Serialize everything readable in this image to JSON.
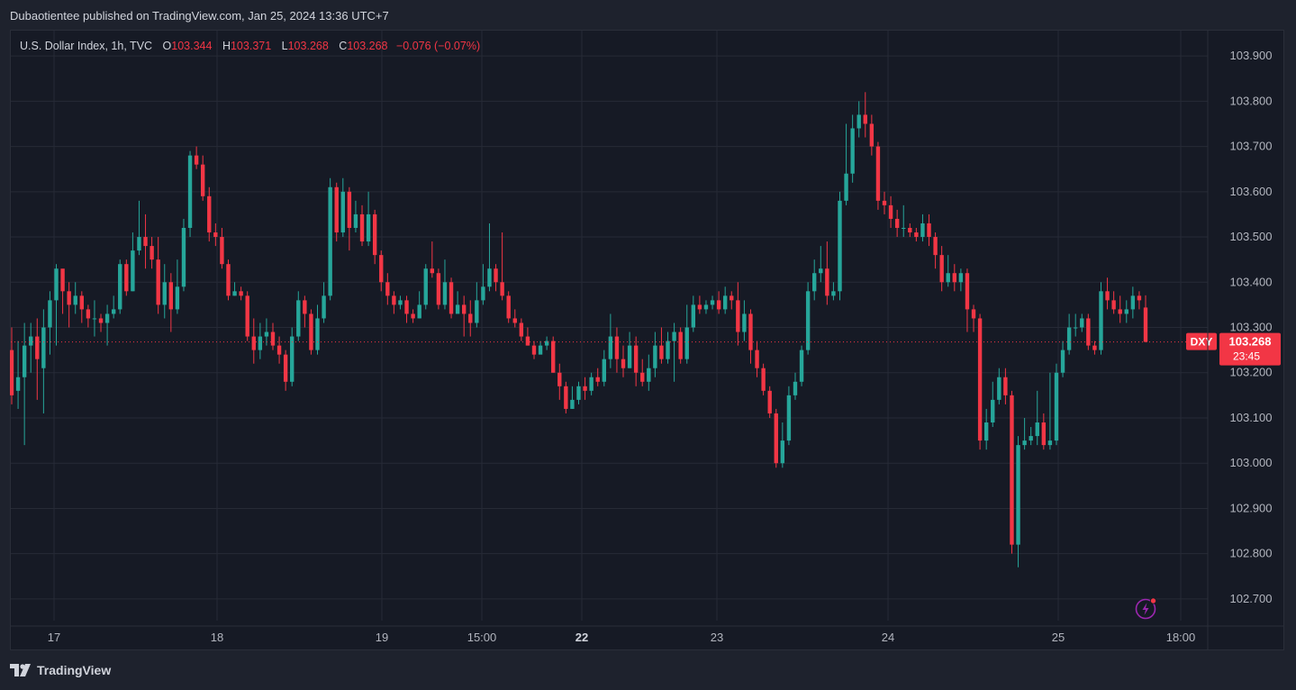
{
  "header": {
    "published": "Dubaotientee published on TradingView.com, Jan 25, 2024 13:36 UTC+7"
  },
  "legend": {
    "symbol": "U.S. Dollar Index, 1h, TVC",
    "o_label": "O",
    "o_value": "103.344",
    "h_label": "H",
    "h_value": "103.371",
    "l_label": "L",
    "l_value": "103.268",
    "c_label": "C",
    "c_value": "103.268",
    "change": "−0.076 (−0.07%)"
  },
  "price_tag": {
    "ticker": "DXY",
    "price": "103.268",
    "countdown": "23:45"
  },
  "branding": {
    "name": "TradingView"
  },
  "colors": {
    "up": "#26a69a",
    "down": "#f23645",
    "background": "#161a25",
    "grid": "#262a36",
    "text": "#b2b5be"
  },
  "chart_data": {
    "type": "candlestick",
    "symbol": "DXY",
    "timeframe": "1h",
    "ylim": [
      102.66,
      103.95
    ],
    "y_ticks": [
      "103.900",
      "103.800",
      "103.700",
      "103.600",
      "103.500",
      "103.400",
      "103.300",
      "103.200",
      "103.100",
      "103.000",
      "102.900",
      "102.800",
      "102.700"
    ],
    "x_ticks": [
      {
        "label": "17",
        "bold": false
      },
      {
        "label": "18",
        "bold": false
      },
      {
        "label": "19",
        "bold": false
      },
      {
        "label": "15:00",
        "bold": false
      },
      {
        "label": "22",
        "bold": true
      },
      {
        "label": "23",
        "bold": false
      },
      {
        "label": "24",
        "bold": false
      },
      {
        "label": "25",
        "bold": false
      },
      {
        "label": "18:00",
        "bold": false
      }
    ],
    "last_price": 103.268,
    "candles": [
      [
        103.25,
        103.15,
        103.3,
        103.13
      ],
      [
        103.16,
        103.19,
        103.27,
        103.12
      ],
      [
        103.19,
        103.26,
        103.31,
        103.04
      ],
      [
        103.26,
        103.28,
        103.31,
        103.2
      ],
      [
        103.28,
        103.23,
        103.32,
        103.14
      ],
      [
        103.21,
        103.3,
        103.34,
        103.11
      ],
      [
        103.3,
        103.36,
        103.38,
        103.24
      ],
      [
        103.36,
        103.43,
        103.44,
        103.26
      ],
      [
        103.43,
        103.38,
        103.42,
        103.33
      ],
      [
        103.38,
        103.35,
        103.4,
        103.3
      ],
      [
        103.35,
        103.37,
        103.4,
        103.33
      ],
      [
        103.37,
        103.34,
        103.38,
        103.31
      ],
      [
        103.34,
        103.32,
        103.35,
        103.3
      ],
      [
        103.32,
        103.32,
        103.36,
        103.28
      ],
      [
        103.32,
        103.31,
        103.33,
        103.29
      ],
      [
        103.31,
        103.33,
        103.35,
        103.26
      ],
      [
        103.33,
        103.34,
        103.37,
        103.32
      ],
      [
        103.34,
        103.44,
        103.45,
        103.33
      ],
      [
        103.44,
        103.38,
        103.45,
        103.37
      ],
      [
        103.38,
        103.47,
        103.51,
        103.38
      ],
      [
        103.47,
        103.5,
        103.58,
        103.46
      ],
      [
        103.5,
        103.48,
        103.55,
        103.43
      ],
      [
        103.48,
        103.45,
        103.5,
        103.43
      ],
      [
        103.45,
        103.35,
        103.5,
        103.33
      ],
      [
        103.35,
        103.4,
        103.44,
        103.32
      ],
      [
        103.4,
        103.34,
        103.42,
        103.29
      ],
      [
        103.34,
        103.39,
        103.45,
        103.33
      ],
      [
        103.39,
        103.52,
        103.54,
        103.38
      ],
      [
        103.52,
        103.68,
        103.69,
        103.5
      ],
      [
        103.68,
        103.66,
        103.7,
        103.65
      ],
      [
        103.66,
        103.59,
        103.68,
        103.58
      ],
      [
        103.59,
        103.51,
        103.61,
        103.49
      ],
      [
        103.51,
        103.5,
        103.53,
        103.48
      ],
      [
        103.5,
        103.44,
        103.52,
        103.43
      ],
      [
        103.44,
        103.37,
        103.45,
        103.36
      ],
      [
        103.37,
        103.38,
        103.4,
        103.37
      ],
      [
        103.38,
        103.37,
        103.39,
        103.36
      ],
      [
        103.37,
        103.28,
        103.38,
        103.27
      ],
      [
        103.28,
        103.25,
        103.32,
        103.22
      ],
      [
        103.25,
        103.28,
        103.31,
        103.23
      ],
      [
        103.28,
        103.29,
        103.32,
        103.26
      ],
      [
        103.29,
        103.26,
        103.31,
        103.25
      ],
      [
        103.26,
        103.24,
        103.28,
        103.22
      ],
      [
        103.24,
        103.18,
        103.25,
        103.16
      ],
      [
        103.18,
        103.28,
        103.3,
        103.17
      ],
      [
        103.28,
        103.36,
        103.38,
        103.27
      ],
      [
        103.36,
        103.33,
        103.37,
        103.3
      ],
      [
        103.33,
        103.25,
        103.34,
        103.24
      ],
      [
        103.25,
        103.32,
        103.35,
        103.24
      ],
      [
        103.32,
        103.37,
        103.4,
        103.31
      ],
      [
        103.37,
        103.61,
        103.63,
        103.36
      ],
      [
        103.61,
        103.51,
        103.62,
        103.49
      ],
      [
        103.51,
        103.6,
        103.63,
        103.5
      ],
      [
        103.6,
        103.52,
        103.61,
        103.47
      ],
      [
        103.52,
        103.55,
        103.58,
        103.51
      ],
      [
        103.55,
        103.49,
        103.57,
        103.48
      ],
      [
        103.49,
        103.55,
        103.6,
        103.48
      ],
      [
        103.55,
        103.46,
        103.56,
        103.44
      ],
      [
        103.46,
        103.4,
        103.47,
        103.38
      ],
      [
        103.4,
        103.37,
        103.42,
        103.35
      ],
      [
        103.37,
        103.35,
        103.38,
        103.33
      ],
      [
        103.35,
        103.36,
        103.37,
        103.34
      ],
      [
        103.36,
        103.33,
        103.37,
        103.31
      ],
      [
        103.33,
        103.32,
        103.34,
        103.31
      ],
      [
        103.32,
        103.35,
        103.38,
        103.32
      ],
      [
        103.35,
        103.43,
        103.44,
        103.34
      ],
      [
        103.43,
        103.42,
        103.49,
        103.41
      ],
      [
        103.42,
        103.35,
        103.43,
        103.34
      ],
      [
        103.35,
        103.4,
        103.45,
        103.34
      ],
      [
        103.4,
        103.33,
        103.41,
        103.32
      ],
      [
        103.33,
        103.35,
        103.38,
        103.34
      ],
      [
        103.35,
        103.33,
        103.37,
        103.28
      ],
      [
        103.33,
        103.31,
        103.36,
        103.28
      ],
      [
        103.31,
        103.36,
        103.4,
        103.3
      ],
      [
        103.36,
        103.39,
        103.44,
        103.35
      ],
      [
        103.39,
        103.43,
        103.53,
        103.38
      ],
      [
        103.43,
        103.4,
        103.44,
        103.38
      ],
      [
        103.4,
        103.37,
        103.51,
        103.36
      ],
      [
        103.37,
        103.32,
        103.38,
        103.31
      ],
      [
        103.32,
        103.31,
        103.34,
        103.3
      ],
      [
        103.31,
        103.28,
        103.32,
        103.27
      ],
      [
        103.28,
        103.26,
        103.3,
        103.26
      ],
      [
        103.26,
        103.24,
        103.27,
        103.23
      ],
      [
        103.24,
        103.26,
        103.27,
        103.25
      ],
      [
        103.26,
        103.27,
        103.28,
        103.25
      ],
      [
        103.27,
        103.2,
        103.28,
        103.2
      ],
      [
        103.2,
        103.17,
        103.22,
        103.14
      ],
      [
        103.17,
        103.12,
        103.18,
        103.11
      ],
      [
        103.12,
        103.14,
        103.17,
        103.12
      ],
      [
        103.14,
        103.17,
        103.18,
        103.13
      ],
      [
        103.17,
        103.16,
        103.19,
        103.14
      ],
      [
        103.16,
        103.19,
        103.2,
        103.15
      ],
      [
        103.19,
        103.18,
        103.21,
        103.17
      ],
      [
        103.18,
        103.23,
        103.25,
        103.17
      ],
      [
        103.23,
        103.28,
        103.33,
        103.21
      ],
      [
        103.28,
        103.23,
        103.3,
        103.2
      ],
      [
        103.23,
        103.21,
        103.26,
        103.19
      ],
      [
        103.21,
        103.26,
        103.29,
        103.21
      ],
      [
        103.26,
        103.2,
        103.28,
        103.17
      ],
      [
        103.2,
        103.18,
        103.23,
        103.17
      ],
      [
        103.18,
        103.21,
        103.24,
        103.16
      ],
      [
        103.21,
        103.26,
        103.29,
        103.19
      ],
      [
        103.26,
        103.23,
        103.3,
        103.22
      ],
      [
        103.23,
        103.27,
        103.29,
        103.22
      ],
      [
        103.27,
        103.29,
        103.31,
        103.18
      ],
      [
        103.29,
        103.23,
        103.3,
        103.22
      ],
      [
        103.23,
        103.3,
        103.35,
        103.22
      ],
      [
        103.3,
        103.35,
        103.37,
        103.29
      ],
      [
        103.35,
        103.34,
        103.37,
        103.33
      ],
      [
        103.34,
        103.35,
        103.36,
        103.33
      ],
      [
        103.35,
        103.36,
        103.37,
        103.34
      ],
      [
        103.36,
        103.34,
        103.38,
        103.33
      ],
      [
        103.34,
        103.37,
        103.39,
        103.33
      ],
      [
        103.37,
        103.36,
        103.38,
        103.34
      ],
      [
        103.36,
        103.29,
        103.4,
        103.26
      ],
      [
        103.29,
        103.33,
        103.36,
        103.27
      ],
      [
        103.33,
        103.25,
        103.34,
        103.22
      ],
      [
        103.25,
        103.21,
        103.27,
        103.19
      ],
      [
        103.21,
        103.16,
        103.22,
        103.15
      ],
      [
        103.16,
        103.11,
        103.17,
        103.1
      ],
      [
        103.11,
        103.0,
        103.12,
        102.99
      ],
      [
        103.0,
        103.05,
        103.09,
        102.99
      ],
      [
        103.05,
        103.15,
        103.17,
        103.04
      ],
      [
        103.15,
        103.18,
        103.2,
        103.14
      ],
      [
        103.18,
        103.25,
        103.26,
        103.17
      ],
      [
        103.25,
        103.38,
        103.4,
        103.24
      ],
      [
        103.38,
        103.42,
        103.45,
        103.36
      ],
      [
        103.42,
        103.43,
        103.48,
        103.4
      ],
      [
        103.43,
        103.37,
        103.49,
        103.35
      ],
      [
        103.37,
        103.38,
        103.4,
        103.36
      ],
      [
        103.38,
        103.58,
        103.6,
        103.36
      ],
      [
        103.58,
        103.64,
        103.75,
        103.57
      ],
      [
        103.64,
        103.74,
        103.77,
        103.62
      ],
      [
        103.74,
        103.77,
        103.8,
        103.72
      ],
      [
        103.77,
        103.75,
        103.82,
        103.72
      ],
      [
        103.75,
        103.7,
        103.77,
        103.68
      ],
      [
        103.7,
        103.58,
        103.71,
        103.56
      ],
      [
        103.58,
        103.57,
        103.6,
        103.55
      ],
      [
        103.57,
        103.54,
        103.59,
        103.52
      ],
      [
        103.54,
        103.52,
        103.56,
        103.5
      ],
      [
        103.52,
        103.52,
        103.57,
        103.5
      ],
      [
        103.52,
        103.51,
        103.53,
        103.5
      ],
      [
        103.51,
        103.5,
        103.52,
        103.49
      ],
      [
        103.5,
        103.53,
        103.55,
        103.49
      ],
      [
        103.53,
        103.5,
        103.55,
        103.48
      ],
      [
        103.5,
        103.46,
        103.51,
        103.43
      ],
      [
        103.46,
        103.4,
        103.48,
        103.38
      ],
      [
        103.4,
        103.42,
        103.46,
        103.39
      ],
      [
        103.42,
        103.4,
        103.44,
        103.38
      ],
      [
        103.4,
        103.42,
        103.43,
        103.38
      ],
      [
        103.42,
        103.34,
        103.43,
        103.29
      ],
      [
        103.34,
        103.32,
        103.35,
        103.29
      ],
      [
        103.32,
        103.05,
        103.33,
        103.03
      ],
      [
        103.05,
        103.09,
        103.12,
        103.03
      ],
      [
        103.09,
        103.14,
        103.18,
        103.08
      ],
      [
        103.14,
        103.19,
        103.21,
        103.13
      ],
      [
        103.19,
        103.15,
        103.21,
        103.13
      ],
      [
        103.15,
        102.82,
        103.16,
        102.8
      ],
      [
        102.82,
        103.04,
        103.06,
        102.77
      ],
      [
        103.04,
        103.05,
        103.1,
        103.03
      ],
      [
        103.05,
        103.06,
        103.08,
        103.04
      ],
      [
        103.06,
        103.09,
        103.16,
        103.04
      ],
      [
        103.09,
        103.04,
        103.11,
        103.03
      ],
      [
        103.04,
        103.05,
        103.2,
        103.03
      ],
      [
        103.05,
        103.2,
        103.22,
        103.04
      ],
      [
        103.2,
        103.25,
        103.27,
        103.19
      ],
      [
        103.25,
        103.3,
        103.33,
        103.24
      ],
      [
        103.3,
        103.3,
        103.33,
        103.28
      ],
      [
        103.3,
        103.32,
        103.33,
        103.29
      ],
      [
        103.32,
        103.26,
        103.33,
        103.25
      ],
      [
        103.26,
        103.25,
        103.27,
        103.24
      ],
      [
        103.25,
        103.38,
        103.4,
        103.24
      ],
      [
        103.38,
        103.36,
        103.41,
        103.34
      ],
      [
        103.36,
        103.34,
        103.38,
        103.33
      ],
      [
        103.34,
        103.33,
        103.37,
        103.31
      ],
      [
        103.33,
        103.34,
        103.36,
        103.31
      ],
      [
        103.34,
        103.37,
        103.39,
        103.32
      ],
      [
        103.37,
        103.36,
        103.38,
        103.34
      ],
      [
        103.344,
        103.268,
        103.371,
        103.268
      ]
    ]
  }
}
